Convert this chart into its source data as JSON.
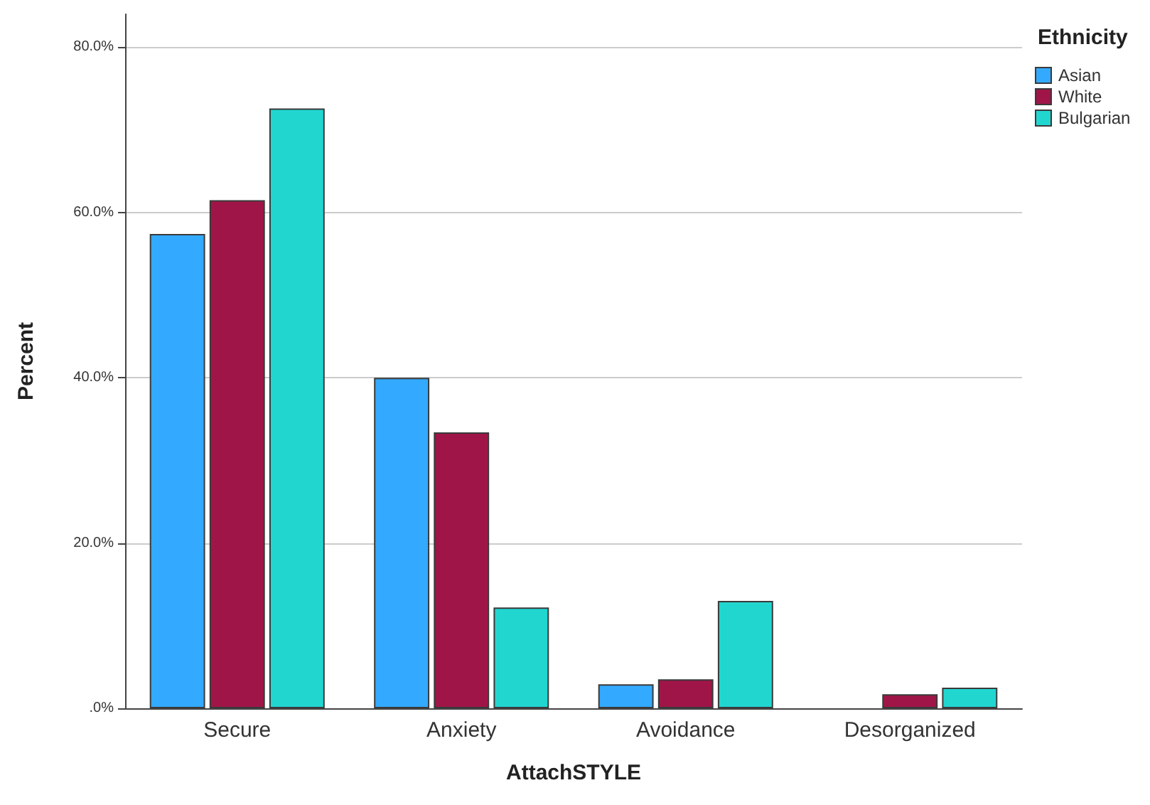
{
  "chart_data": {
    "type": "bar",
    "xlabel": "AttachSTYLE",
    "ylabel": "Percent",
    "legend_title": "Ethnicity",
    "categories": [
      "Secure",
      "Anxiety",
      "Avoidance",
      "Desorganized"
    ],
    "series": [
      {
        "name": "Asian",
        "color": "#33aaff",
        "values": [
          57.4,
          40.0,
          2.9,
          null
        ]
      },
      {
        "name": "White",
        "color": "#a01548",
        "values": [
          61.5,
          33.4,
          3.5,
          1.7
        ]
      },
      {
        "name": "Bulgarian",
        "color": "#22d6d0",
        "values": [
          72.6,
          12.2,
          13.0,
          2.5
        ]
      }
    ],
    "ylim": [
      0,
      84
    ],
    "yticks": [
      {
        "value": 0,
        "label": ".0%"
      },
      {
        "value": 20,
        "label": "20.0%"
      },
      {
        "value": 40,
        "label": "40.0%"
      },
      {
        "value": 60,
        "label": "60.0%"
      },
      {
        "value": 80,
        "label": "80.0%"
      }
    ],
    "grid": "y",
    "legend": "top right"
  }
}
